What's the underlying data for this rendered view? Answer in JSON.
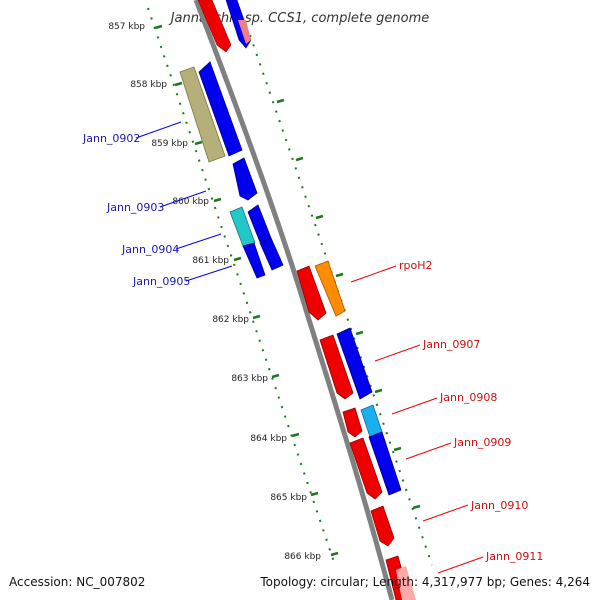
{
  "title": "Jannaschia sp. CCS1, complete genome",
  "accession": "Accession: NC_007802",
  "topology": "Topology: circular; Length: 4,317,977 bp; Genes: 4,264",
  "colors": {
    "backbone": "#808080",
    "scale_ticks": "#1b7a1b",
    "gene_blue": "#0000ee",
    "gene_red": "#ee0000",
    "gene_olive": "#b5b07a",
    "gene_cyan": "#22c8c8",
    "gene_skyblue": "#1ab0f0",
    "gene_orange": "#ff8c00",
    "label_blue": "#1a1ab0",
    "label_red": "#cc1111"
  },
  "kbp_labels": [
    "857 kbp",
    "858 kbp",
    "859 kbp",
    "860 kbp",
    "861 kbp",
    "862 kbp",
    "863 kbp",
    "864 kbp",
    "865 kbp",
    "866 kbp"
  ],
  "left_genes": [
    "Jann_0902",
    "Jann_0903",
    "Jann_0904",
    "Jann_0905"
  ],
  "right_genes": [
    "rpoH2",
    "Jann_0907",
    "Jann_0908",
    "Jann_0909",
    "Jann_0910",
    "Jann_0911"
  ]
}
